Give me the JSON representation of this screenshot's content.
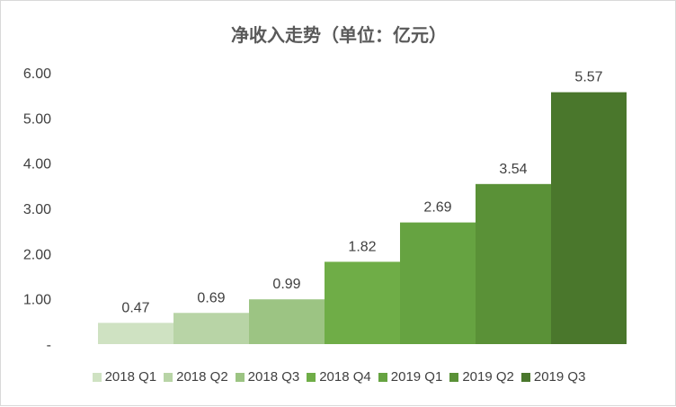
{
  "chart_data": {
    "type": "bar",
    "title": "净收入走势（单位：亿元）",
    "categories": [
      "2018 Q1",
      "2018 Q2",
      "2018 Q3",
      "2018 Q4",
      "2019 Q1",
      "2019 Q2",
      "2019 Q3"
    ],
    "values": [
      0.47,
      0.69,
      0.99,
      1.82,
      2.69,
      3.54,
      5.57
    ],
    "colors": [
      "#cfe2c2",
      "#b8d4a6",
      "#9cc483",
      "#6fad47",
      "#66a341",
      "#5a9137",
      "#4a772c"
    ],
    "ylim": [
      0,
      6
    ],
    "yticks": [
      0,
      1,
      2,
      3,
      4,
      5,
      6
    ],
    "ytick_labels": [
      "-",
      "1.00",
      "2.00",
      "3.00",
      "4.00",
      "5.00",
      "6.00"
    ],
    "data_labels": [
      "0.47",
      "0.69",
      "0.99",
      "1.82",
      "2.69",
      "3.54",
      "5.57"
    ],
    "legend_position": "bottom",
    "grid": false
  }
}
